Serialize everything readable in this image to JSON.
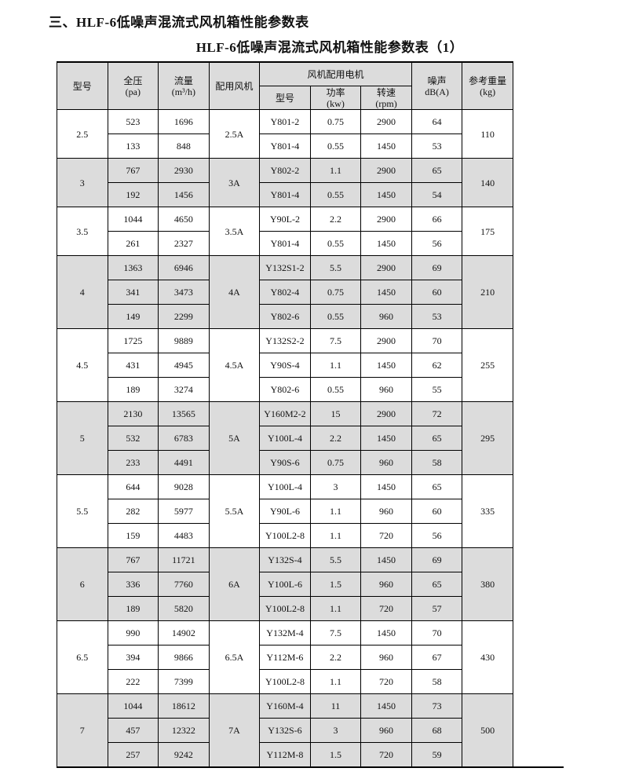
{
  "section_title": "三、HLF-6低噪声混流式风机箱性能参数表",
  "table_title": "HLF-6低噪声混流式风机箱性能参数表（1）",
  "headers": {
    "model": "型号",
    "pressure": "全压",
    "pressure_unit": "(pa)",
    "flow": "流量",
    "flow_unit": "(m³/h)",
    "fan": "配用风机",
    "motor_group": "风机配用电机",
    "motor_model": "型号",
    "power": "功率",
    "power_unit": "(kw)",
    "speed": "转速",
    "speed_unit": "(rpm)",
    "noise": "噪声",
    "noise_unit": "dB(A)",
    "weight": "参考重量",
    "weight_unit": "(kg)"
  },
  "colors": {
    "shade": "#dcdcdc"
  },
  "groups": [
    {
      "model": "2.5",
      "fan": "2.5A",
      "weight": "110",
      "shaded": false,
      "rows": [
        [
          "523",
          "1696",
          "Y801-2",
          "0.75",
          "2900",
          "64"
        ],
        [
          "133",
          "848",
          "Y801-4",
          "0.55",
          "1450",
          "53"
        ]
      ]
    },
    {
      "model": "3",
      "fan": "3A",
      "weight": "140",
      "shaded": true,
      "rows": [
        [
          "767",
          "2930",
          "Y802-2",
          "1.1",
          "2900",
          "65"
        ],
        [
          "192",
          "1456",
          "Y801-4",
          "0.55",
          "1450",
          "54"
        ]
      ]
    },
    {
      "model": "3.5",
      "fan": "3.5A",
      "weight": "175",
      "shaded": false,
      "rows": [
        [
          "1044",
          "4650",
          "Y90L-2",
          "2.2",
          "2900",
          "66"
        ],
        [
          "261",
          "2327",
          "Y801-4",
          "0.55",
          "1450",
          "56"
        ]
      ]
    },
    {
      "model": "4",
      "fan": "4A",
      "weight": "210",
      "shaded": true,
      "rows": [
        [
          "1363",
          "6946",
          "Y132S1-2",
          "5.5",
          "2900",
          "69"
        ],
        [
          "341",
          "3473",
          "Y802-4",
          "0.75",
          "1450",
          "60"
        ],
        [
          "149",
          "2299",
          "Y802-6",
          "0.55",
          "960",
          "53"
        ]
      ]
    },
    {
      "model": "4.5",
      "fan": "4.5A",
      "weight": "255",
      "shaded": false,
      "rows": [
        [
          "1725",
          "9889",
          "Y132S2-2",
          "7.5",
          "2900",
          "70"
        ],
        [
          "431",
          "4945",
          "Y90S-4",
          "1.1",
          "1450",
          "62"
        ],
        [
          "189",
          "3274",
          "Y802-6",
          "0.55",
          "960",
          "55"
        ]
      ]
    },
    {
      "model": "5",
      "fan": "5A",
      "weight": "295",
      "shaded": true,
      "rows": [
        [
          "2130",
          "13565",
          "Y160M2-2",
          "15",
          "2900",
          "72"
        ],
        [
          "532",
          "6783",
          "Y100L-4",
          "2.2",
          "1450",
          "65"
        ],
        [
          "233",
          "4491",
          "Y90S-6",
          "0.75",
          "960",
          "58"
        ]
      ]
    },
    {
      "model": "5.5",
      "fan": "5.5A",
      "weight": "335",
      "shaded": false,
      "rows": [
        [
          "644",
          "9028",
          "Y100L-4",
          "3",
          "1450",
          "65"
        ],
        [
          "282",
          "5977",
          "Y90L-6",
          "1.1",
          "960",
          "60"
        ],
        [
          "159",
          "4483",
          "Y100L2-8",
          "1.1",
          "720",
          "56"
        ]
      ]
    },
    {
      "model": "6",
      "fan": "6A",
      "weight": "380",
      "shaded": true,
      "rows": [
        [
          "767",
          "11721",
          "Y132S-4",
          "5.5",
          "1450",
          "69"
        ],
        [
          "336",
          "7760",
          "Y100L-6",
          "1.5",
          "960",
          "65"
        ],
        [
          "189",
          "5820",
          "Y100L2-8",
          "1.1",
          "720",
          "57"
        ]
      ]
    },
    {
      "model": "6.5",
      "fan": "6.5A",
      "weight": "430",
      "shaded": false,
      "rows": [
        [
          "990",
          "14902",
          "Y132M-4",
          "7.5",
          "1450",
          "70"
        ],
        [
          "394",
          "9866",
          "Y112M-6",
          "2.2",
          "960",
          "67"
        ],
        [
          "222",
          "7399",
          "Y100L2-8",
          "1.1",
          "720",
          "58"
        ]
      ]
    },
    {
      "model": "7",
      "fan": "7A",
      "weight": "500",
      "shaded": true,
      "rows": [
        [
          "1044",
          "18612",
          "Y160M-4",
          "11",
          "1450",
          "73"
        ],
        [
          "457",
          "12322",
          "Y132S-6",
          "3",
          "960",
          "68"
        ],
        [
          "257",
          "9242",
          "Y112M-8",
          "1.5",
          "720",
          "59"
        ]
      ]
    }
  ]
}
